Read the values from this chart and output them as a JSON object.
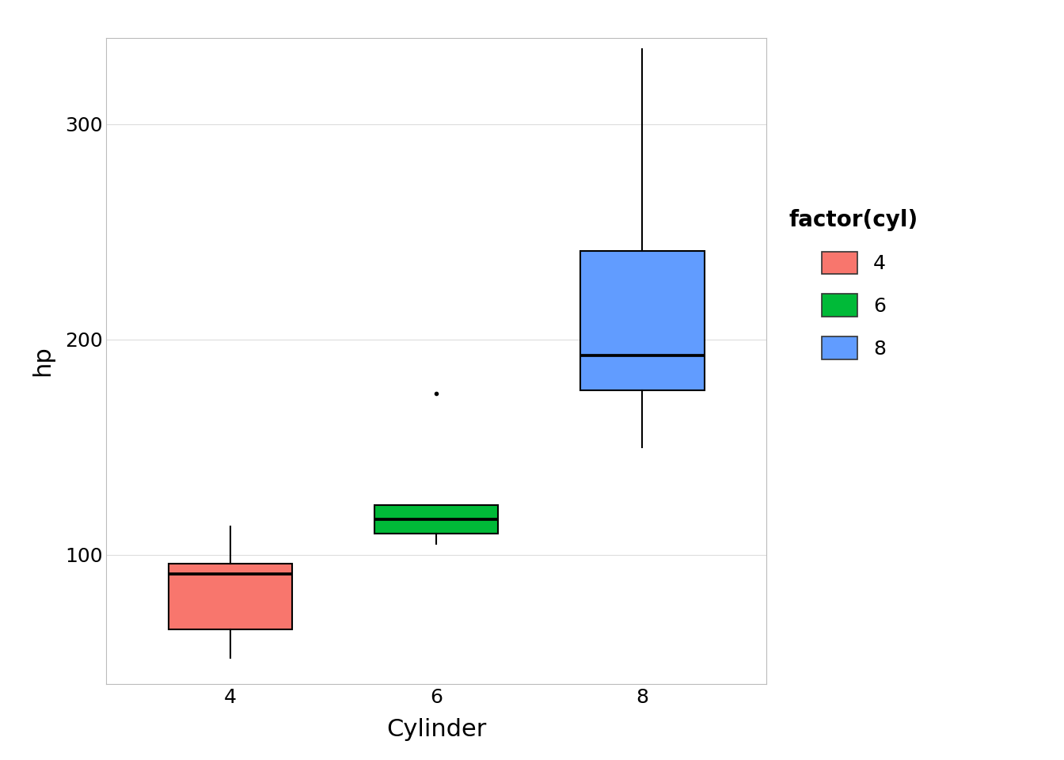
{
  "title": "",
  "xlabel": "Cylinder",
  "ylabel": "hp",
  "legend_title": "factor(cyl)",
  "legend_labels": [
    "4",
    "6",
    "8"
  ],
  "legend_colors": [
    "#F8766D",
    "#00BA38",
    "#619CFF"
  ],
  "box_data": {
    "4": {
      "whisker_low": 52,
      "q1": 65.5,
      "median": 91,
      "q3": 96,
      "whisker_high": 113,
      "outliers": [],
      "color": "#F8766D"
    },
    "6": {
      "whisker_low": 105,
      "q1": 110,
      "median": 116.5,
      "q3": 123,
      "whisker_high": 123,
      "outliers": [
        175
      ],
      "color": "#00BA38"
    },
    "8": {
      "whisker_low": 150,
      "q1": 176.25,
      "median": 192.5,
      "q3": 241,
      "whisker_high": 335,
      "outliers": [],
      "color": "#619CFF"
    }
  },
  "categories": [
    "4",
    "6",
    "8"
  ],
  "x_positions": [
    1,
    2,
    3
  ],
  "ylim": [
    40,
    340
  ],
  "yticks": [
    100,
    200,
    300
  ],
  "background_color": "#FFFFFF",
  "panel_background": "#FFFFFF",
  "grid_color": "#DDDDDD",
  "box_width": 0.6,
  "linewidth": 1.5,
  "outlier_size": 3,
  "tick_fontsize": 18,
  "label_fontsize": 22,
  "legend_fontsize": 18,
  "legend_title_fontsize": 20
}
